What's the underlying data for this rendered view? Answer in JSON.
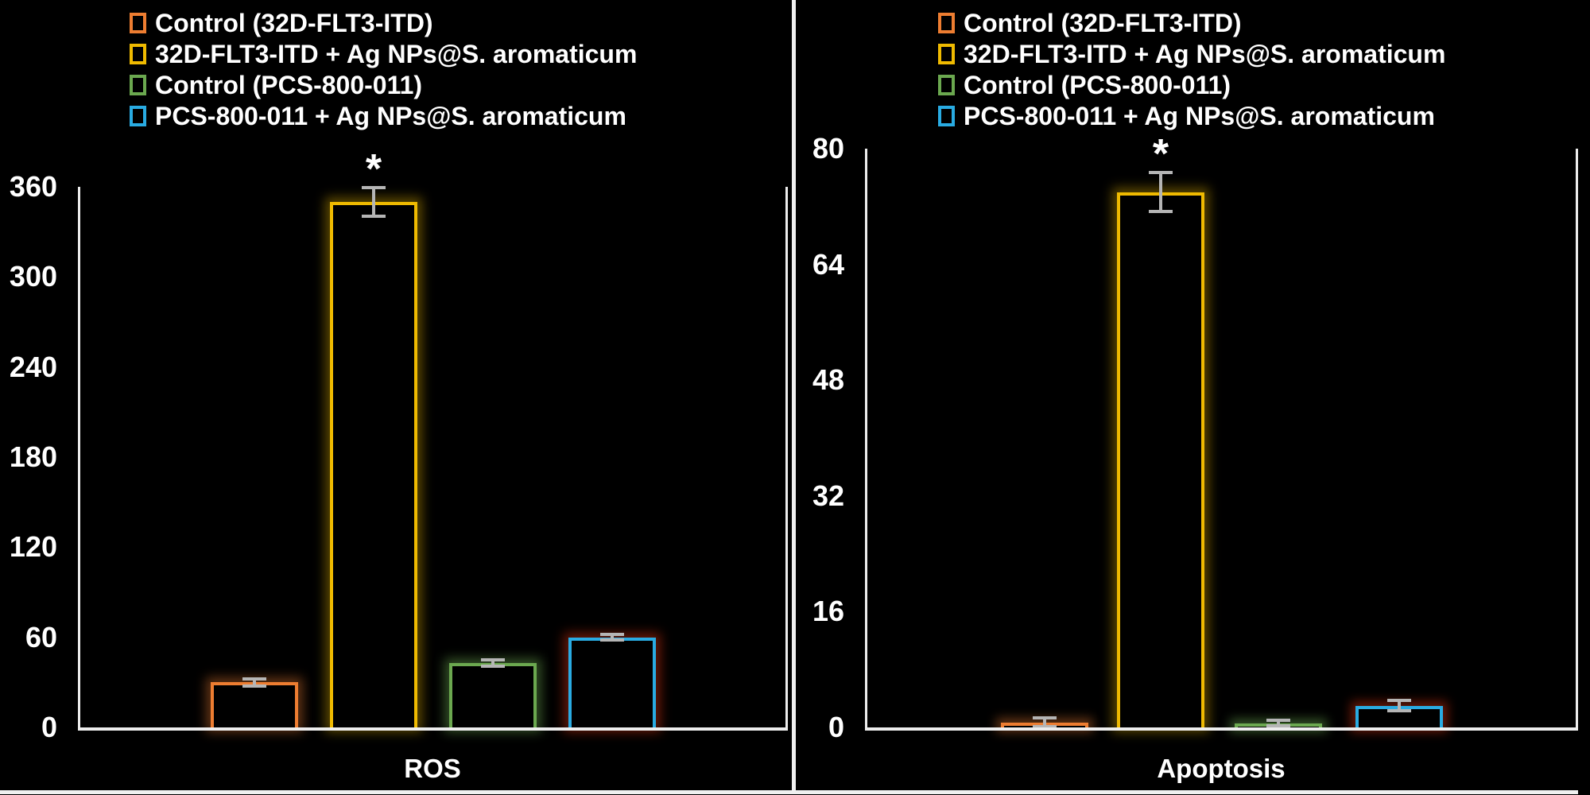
{
  "figure": {
    "background": "#000000",
    "frame_color": "#F0F0F0",
    "axis_color": "#EDEDED",
    "error_bar_color": "#B5B5B5",
    "significance_marker": "*"
  },
  "chart_data": [
    {
      "type": "bar",
      "title": "",
      "xlabel": "ROS",
      "categories": [
        "ROS"
      ],
      "ylim": [
        0,
        360
      ],
      "yticks": [
        0,
        60,
        120,
        180,
        240,
        300,
        360
      ],
      "grid": false,
      "legend_position": "top-left",
      "series": [
        {
          "name": "Control (32D-FLT3-ITD)",
          "value": 30,
          "error": 3,
          "color": "#ED7D31",
          "glow": "#ED7D3166",
          "significant": false
        },
        {
          "name": "32D-FLT3-ITD + Ag NPs@S. aromaticum",
          "value": 350,
          "error": 10,
          "color": "#EFBA00",
          "glow": "#A8860088",
          "significant": true
        },
        {
          "name": "Control (PCS-800-011)",
          "value": 43,
          "error": 2.5,
          "color": "#6BA84F",
          "glow": "#6BA84F77",
          "significant": false
        },
        {
          "name": "PCS-800-011 + Ag NPs@S. aromaticum",
          "value": 60,
          "error": 2.5,
          "color": "#29ABE2",
          "glow": "#7E1E0ACC",
          "significant": false
        }
      ]
    },
    {
      "type": "bar",
      "title": "",
      "xlabel": "Apoptosis",
      "categories": [
        "Apoptosis"
      ],
      "ylim": [
        0,
        80
      ],
      "yticks": [
        0,
        16,
        32,
        48,
        64,
        80
      ],
      "grid": false,
      "legend_position": "top-left",
      "series": [
        {
          "name": "Control (32D-FLT3-ITD)",
          "value": 0.7,
          "error": 0.7,
          "color": "#ED7D31",
          "glow": "#ED7D3166",
          "significant": false
        },
        {
          "name": "32D-FLT3-ITD + Ag NPs@S. aromaticum",
          "value": 74,
          "error": 2.8,
          "color": "#EFBA00",
          "glow": "#A8860088",
          "significant": true
        },
        {
          "name": "Control (PCS-800-011)",
          "value": 0.6,
          "error": 0.5,
          "color": "#6BA84F",
          "glow": "#6BA84F77",
          "significant": false
        },
        {
          "name": "PCS-800-011 + Ag NPs@S. aromaticum",
          "value": 3,
          "error": 0.8,
          "color": "#29ABE2",
          "glow": "#7E1E0ACC",
          "significant": false
        }
      ]
    }
  ]
}
